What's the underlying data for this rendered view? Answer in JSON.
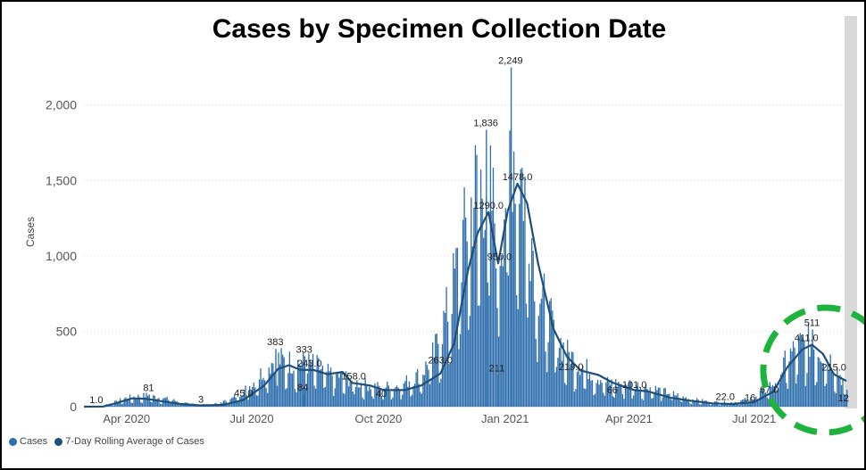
{
  "chart_data": {
    "type": "bar",
    "title": "Cases by Specimen Collection Date",
    "ylabel": "Cases",
    "xlabel": "",
    "ylim": [
      0,
      2300
    ],
    "y_ticks": [
      0,
      500,
      1000,
      1500,
      2000
    ],
    "y_tick_labels": [
      "0",
      "500",
      "1,000",
      "1,500",
      "2,000"
    ],
    "x_range": [
      "2020-03-01",
      "2021-09-06"
    ],
    "x_ticks": [
      {
        "date": "2020-04-01",
        "label": "Apr 2020"
      },
      {
        "date": "2020-07-01",
        "label": "Jul 2020"
      },
      {
        "date": "2020-10-01",
        "label": "Oct 2020"
      },
      {
        "date": "2021-01-01",
        "label": "Jan 2021"
      },
      {
        "date": "2021-04-01",
        "label": "Apr 2021"
      },
      {
        "date": "2021-07-01",
        "label": "Jul 2021"
      }
    ],
    "grid": true,
    "legend_position": "bottom-left",
    "series": [
      {
        "name": "Cases",
        "kind": "bar",
        "color": "#2f6fad",
        "envelope": [
          [
            "2020-03-01",
            0
          ],
          [
            "2020-03-10",
            2
          ],
          [
            "2020-03-20",
            20
          ],
          [
            "2020-04-01",
            60
          ],
          [
            "2020-04-15",
            75
          ],
          [
            "2020-05-01",
            50
          ],
          [
            "2020-05-15",
            20
          ],
          [
            "2020-06-01",
            12
          ],
          [
            "2020-06-15",
            45
          ],
          [
            "2020-07-01",
            150
          ],
          [
            "2020-07-10",
            250
          ],
          [
            "2020-07-18",
            320
          ],
          [
            "2020-07-25",
            300
          ],
          [
            "2020-08-05",
            290
          ],
          [
            "2020-08-15",
            280
          ],
          [
            "2020-08-25",
            220
          ],
          [
            "2020-09-05",
            200
          ],
          [
            "2020-09-15",
            160
          ],
          [
            "2020-10-01",
            130
          ],
          [
            "2020-10-15",
            140
          ],
          [
            "2020-11-01",
            220
          ],
          [
            "2020-11-10",
            350
          ],
          [
            "2020-11-20",
            650
          ],
          [
            "2020-12-01",
            1100
          ],
          [
            "2020-12-10",
            1450
          ],
          [
            "2020-12-18",
            1500
          ],
          [
            "2020-12-28",
            1100
          ],
          [
            "2021-01-05",
            1800
          ],
          [
            "2021-01-15",
            1450
          ],
          [
            "2021-01-25",
            800
          ],
          [
            "2021-02-05",
            500
          ],
          [
            "2021-02-15",
            350
          ],
          [
            "2021-03-01",
            250
          ],
          [
            "2021-03-15",
            160
          ],
          [
            "2021-04-01",
            150
          ],
          [
            "2021-04-15",
            130
          ],
          [
            "2021-05-01",
            90
          ],
          [
            "2021-05-15",
            50
          ],
          [
            "2021-06-01",
            30
          ],
          [
            "2021-06-15",
            28
          ],
          [
            "2021-07-01",
            60
          ],
          [
            "2021-07-15",
            160
          ],
          [
            "2021-07-25",
            320
          ],
          [
            "2021-08-01",
            400
          ],
          [
            "2021-08-10",
            430
          ],
          [
            "2021-08-20",
            360
          ],
          [
            "2021-08-28",
            280
          ],
          [
            "2021-09-06",
            120
          ]
        ]
      },
      {
        "name": "7-Day Rolling Average of Cases",
        "kind": "line",
        "color": "#1f4e79",
        "points": [
          [
            "2020-03-01",
            0
          ],
          [
            "2020-03-15",
            1
          ],
          [
            "2020-03-25",
            25
          ],
          [
            "2020-04-05",
            55
          ],
          [
            "2020-04-15",
            52
          ],
          [
            "2020-04-25",
            38
          ],
          [
            "2020-05-10",
            18
          ],
          [
            "2020-05-25",
            8
          ],
          [
            "2020-06-10",
            12
          ],
          [
            "2020-06-25",
            45
          ],
          [
            "2020-07-10",
            140
          ],
          [
            "2020-07-20",
            250
          ],
          [
            "2020-07-28",
            275
          ],
          [
            "2020-08-05",
            245
          ],
          [
            "2020-08-15",
            243
          ],
          [
            "2020-08-25",
            215
          ],
          [
            "2020-09-05",
            230
          ],
          [
            "2020-09-12",
            158
          ],
          [
            "2020-09-25",
            140
          ],
          [
            "2020-10-05",
            110
          ],
          [
            "2020-10-20",
            110
          ],
          [
            "2020-11-01",
            140
          ],
          [
            "2020-11-15",
            220
          ],
          [
            "2020-11-25",
            420
          ],
          [
            "2020-12-05",
            900
          ],
          [
            "2020-12-12",
            1150
          ],
          [
            "2020-12-20",
            1290
          ],
          [
            "2020-12-27",
            950
          ],
          [
            "2021-01-03",
            1300
          ],
          [
            "2021-01-10",
            1478
          ],
          [
            "2021-01-17",
            1350
          ],
          [
            "2021-01-25",
            950
          ],
          [
            "2021-02-05",
            520
          ],
          [
            "2021-02-15",
            330
          ],
          [
            "2021-02-25",
            240
          ],
          [
            "2021-03-10",
            210
          ],
          [
            "2021-03-20",
            160
          ],
          [
            "2021-04-05",
            110
          ],
          [
            "2021-04-15",
            101
          ],
          [
            "2021-05-01",
            60
          ],
          [
            "2021-05-15",
            40
          ],
          [
            "2021-06-01",
            22
          ],
          [
            "2021-06-15",
            18
          ],
          [
            "2021-07-01",
            30
          ],
          [
            "2021-07-15",
            100
          ],
          [
            "2021-07-25",
            260
          ],
          [
            "2021-08-05",
            380
          ],
          [
            "2021-08-12",
            411
          ],
          [
            "2021-08-20",
            350
          ],
          [
            "2021-08-28",
            215
          ],
          [
            "2021-09-06",
            170
          ]
        ]
      }
    ],
    "data_labels": [
      {
        "date": "2020-03-10",
        "value": 1,
        "text": "1.0"
      },
      {
        "date": "2020-04-17",
        "value": 81,
        "text": "81"
      },
      {
        "date": "2020-05-25",
        "value": 3,
        "text": "3"
      },
      {
        "date": "2020-06-25",
        "value": 45,
        "text": "45.0"
      },
      {
        "date": "2020-07-18",
        "value": 383,
        "text": "383"
      },
      {
        "date": "2020-08-08",
        "value": 333,
        "text": "333"
      },
      {
        "date": "2020-08-12",
        "value": 243,
        "text": "243.0"
      },
      {
        "date": "2020-08-07",
        "value": 84,
        "text": "84"
      },
      {
        "date": "2020-09-13",
        "value": 158,
        "text": "158.0"
      },
      {
        "date": "2020-10-03",
        "value": 40,
        "text": "40"
      },
      {
        "date": "2020-11-15",
        "value": 263,
        "text": "263.0"
      },
      {
        "date": "2020-12-18",
        "value": 1836,
        "text": "1,836"
      },
      {
        "date": "2020-12-20",
        "value": 1290,
        "text": "1290.0"
      },
      {
        "date": "2020-12-28",
        "value": 950,
        "text": "950.0"
      },
      {
        "date": "2020-12-26",
        "value": 211,
        "text": "211"
      },
      {
        "date": "2021-01-05",
        "value": 2249,
        "text": "2,249"
      },
      {
        "date": "2021-01-10",
        "value": 1478,
        "text": "1478.0"
      },
      {
        "date": "2021-02-18",
        "value": 219,
        "text": "219.0"
      },
      {
        "date": "2021-03-20",
        "value": 66,
        "text": "66"
      },
      {
        "date": "2021-04-05",
        "value": 101,
        "text": "101.0"
      },
      {
        "date": "2021-06-10",
        "value": 22,
        "text": "22.0"
      },
      {
        "date": "2021-06-28",
        "value": 16,
        "text": "16"
      },
      {
        "date": "2021-07-12",
        "value": 67,
        "text": "67.0"
      },
      {
        "date": "2021-08-08",
        "value": 411,
        "text": "411.0"
      },
      {
        "date": "2021-08-12",
        "value": 511,
        "text": "511"
      },
      {
        "date": "2021-08-28",
        "value": 215,
        "text": "215.0"
      },
      {
        "date": "2021-09-04",
        "value": 12,
        "text": "12"
      }
    ]
  },
  "legend": {
    "items": [
      {
        "label": "Cases",
        "color": "#2f6fad"
      },
      {
        "label": "7-Day Rolling Average of Cases",
        "color": "#1f4e79"
      }
    ]
  },
  "annotation": {
    "color": "#1db33c",
    "shape": "dashed-circle"
  }
}
